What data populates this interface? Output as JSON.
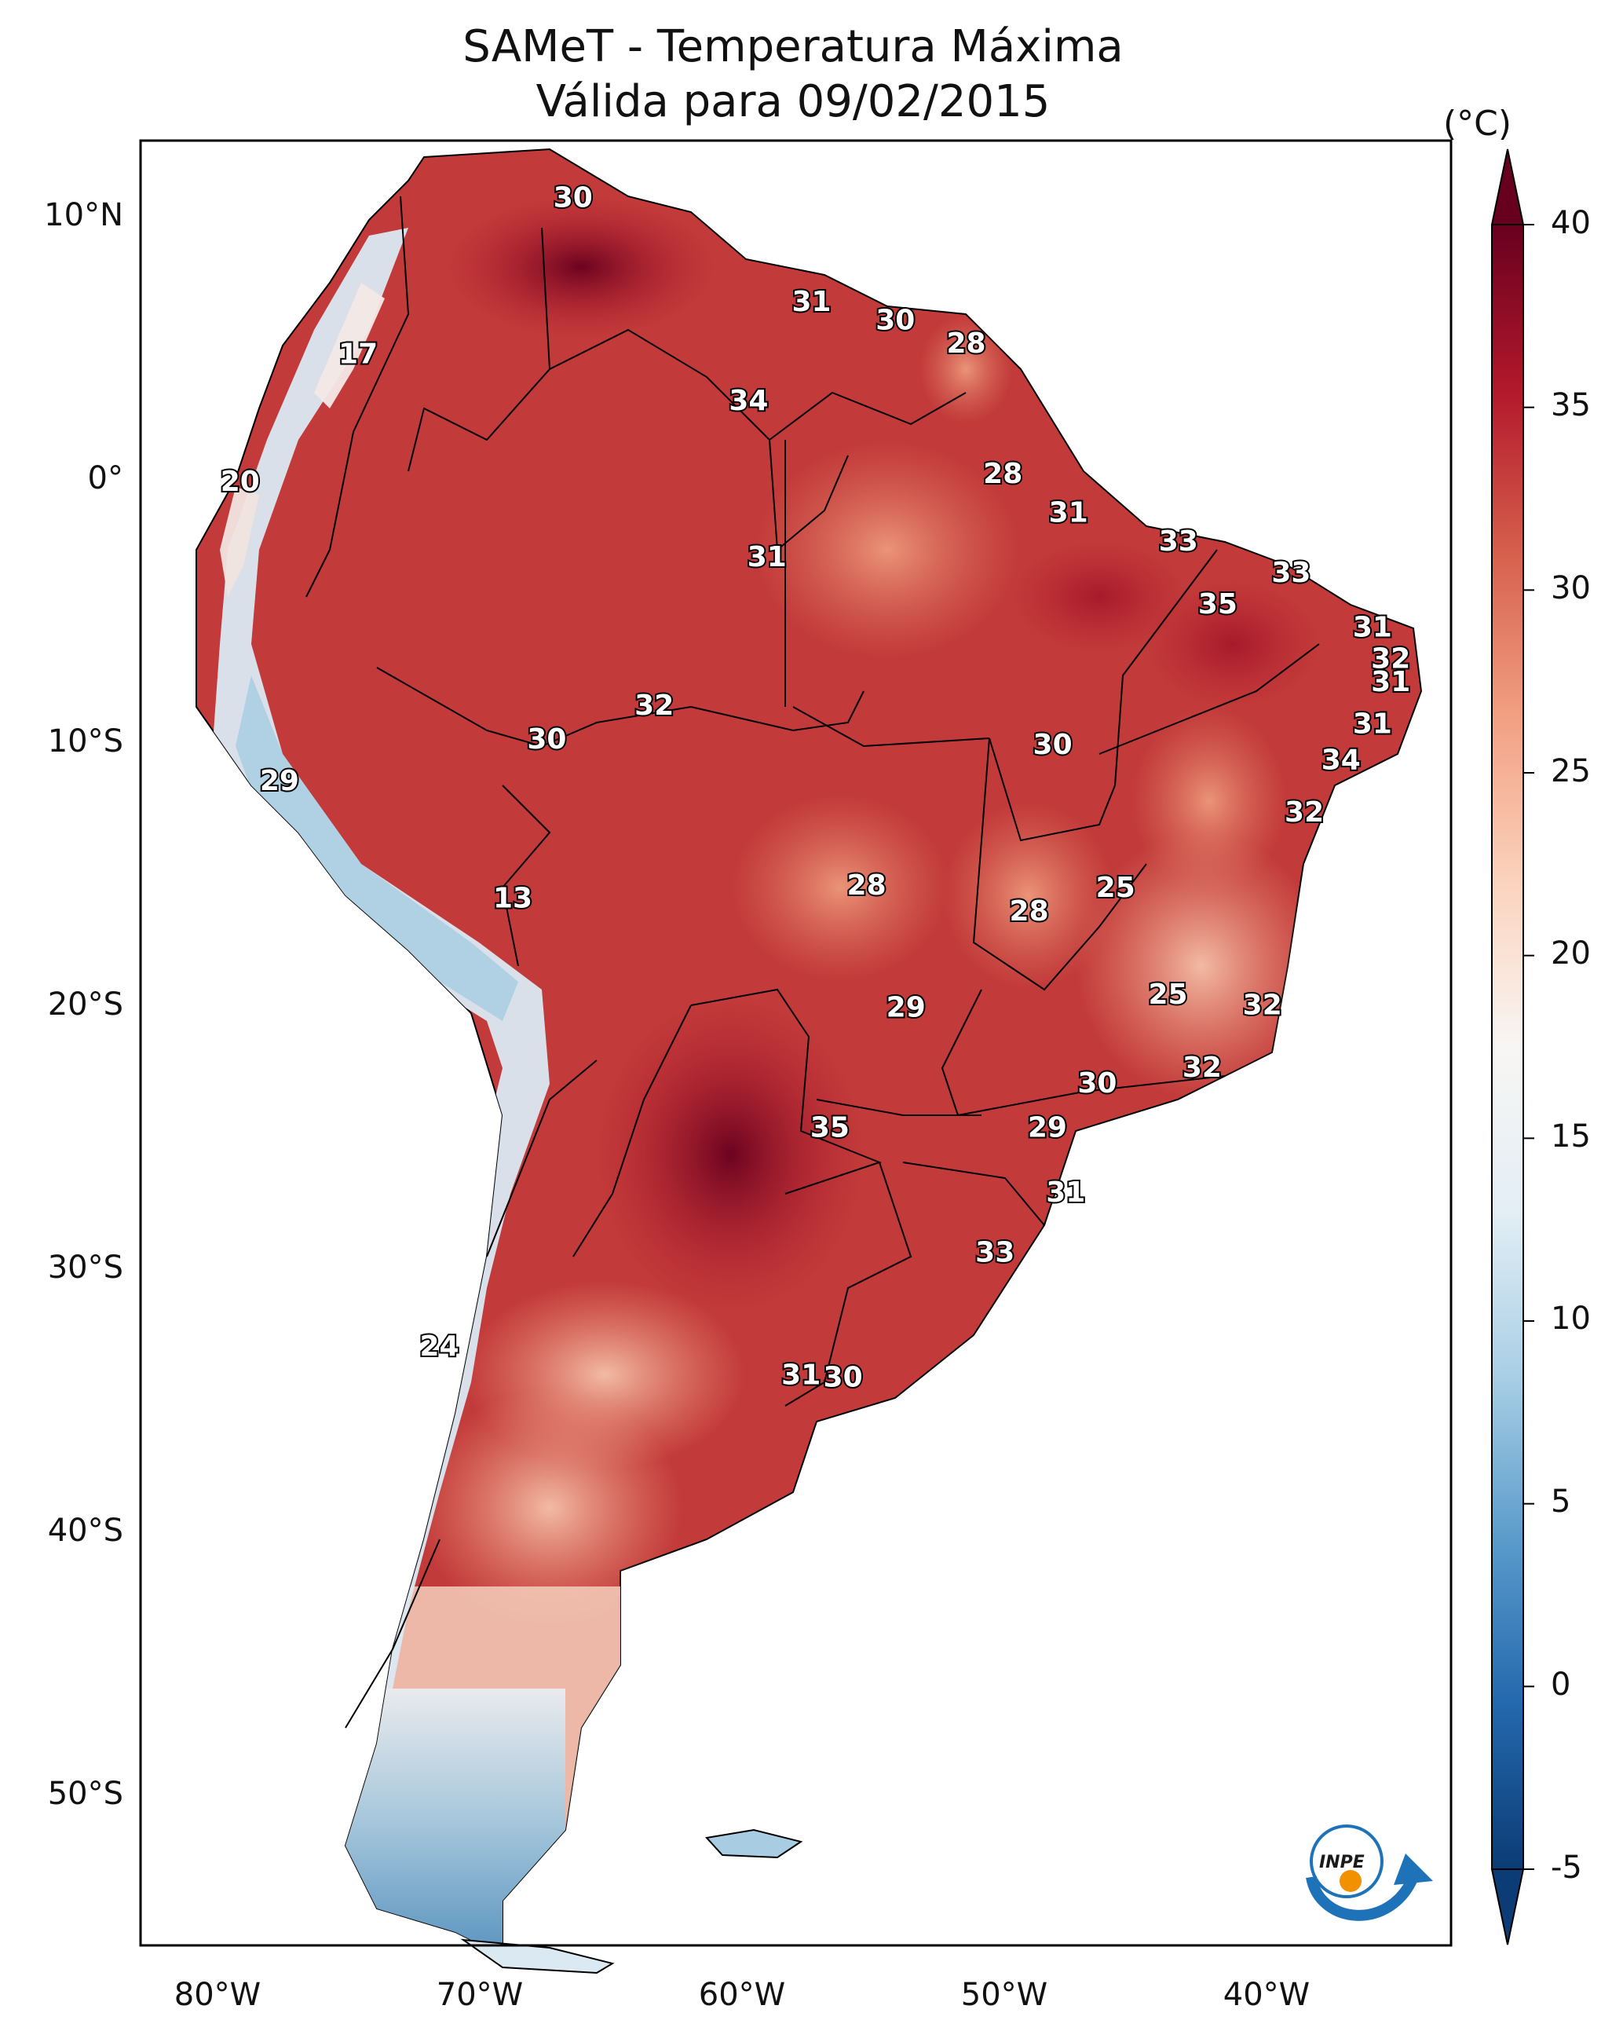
{
  "title": "SAMeT - Temperatura Máxima",
  "subtitle": "Válida para 09/02/2015",
  "colorbar": {
    "unit": "(°C)",
    "ticks": [
      "40",
      "35",
      "30",
      "25",
      "20",
      "15",
      "10",
      "5",
      "0",
      "-5"
    ],
    "range": [
      -5,
      40
    ],
    "colors": [
      "#0b3c75",
      "#2468ad",
      "#5a9bcb",
      "#a9cfe5",
      "#e3eef5",
      "#f8f6f4",
      "#fbd3bd",
      "#f2a083",
      "#d6604d",
      "#b2182b",
      "#67001f"
    ]
  },
  "axes": {
    "lat_labels": [
      "10°N",
      "0°",
      "10°S",
      "20°S",
      "30°S",
      "40°S",
      "50°S"
    ],
    "lon_labels": [
      "80°W",
      "70°W",
      "60°W",
      "50°W",
      "40°W"
    ]
  },
  "map_extent": {
    "lon": [
      -82.8,
      -32.8
    ],
    "lat": [
      -56.5,
      12.8
    ]
  },
  "contour_labels": [
    {
      "text": "30",
      "lon": -66.3,
      "lat": 10.6
    },
    {
      "text": "31",
      "lon": -57.2,
      "lat": 6.6
    },
    {
      "text": "30",
      "lon": -54.0,
      "lat": 5.9
    },
    {
      "text": "28",
      "lon": -51.3,
      "lat": 5.0
    },
    {
      "text": "17",
      "lon": -74.5,
      "lat": 4.6
    },
    {
      "text": "34",
      "lon": -59.6,
      "lat": 2.8
    },
    {
      "text": "28",
      "lon": -49.9,
      "lat": 0.0
    },
    {
      "text": "20",
      "lon": -79.0,
      "lat": -0.3
    },
    {
      "text": "31",
      "lon": -47.4,
      "lat": -1.5
    },
    {
      "text": "33",
      "lon": -43.2,
      "lat": -2.6
    },
    {
      "text": "31",
      "lon": -58.9,
      "lat": -3.2
    },
    {
      "text": "33",
      "lon": -38.9,
      "lat": -3.8
    },
    {
      "text": "35",
      "lon": -41.7,
      "lat": -5.0
    },
    {
      "text": "31",
      "lon": -35.8,
      "lat": -5.9
    },
    {
      "text": "32",
      "lon": -35.1,
      "lat": -7.1
    },
    {
      "text": "31",
      "lon": -35.1,
      "lat": -8.0
    },
    {
      "text": "32",
      "lon": -63.2,
      "lat": -8.9
    },
    {
      "text": "31",
      "lon": -35.8,
      "lat": -9.6
    },
    {
      "text": "30",
      "lon": -67.3,
      "lat": -10.2
    },
    {
      "text": "30",
      "lon": -48.0,
      "lat": -10.4
    },
    {
      "text": "34",
      "lon": -37.0,
      "lat": -11.0
    },
    {
      "text": "29",
      "lon": -77.5,
      "lat": -11.8
    },
    {
      "text": "32",
      "lon": -38.4,
      "lat": -13.0
    },
    {
      "text": "25",
      "lon": -45.6,
      "lat": -15.9
    },
    {
      "text": "28",
      "lon": -55.1,
      "lat": -15.8
    },
    {
      "text": "28",
      "lon": -48.9,
      "lat": -16.8
    },
    {
      "text": "13",
      "lon": -68.6,
      "lat": -16.3
    },
    {
      "text": "25",
      "lon": -43.6,
      "lat": -20.0
    },
    {
      "text": "32",
      "lon": -40.0,
      "lat": -20.4
    },
    {
      "text": "29",
      "lon": -53.6,
      "lat": -20.5
    },
    {
      "text": "32",
      "lon": -42.3,
      "lat": -22.8
    },
    {
      "text": "30",
      "lon": -46.3,
      "lat": -23.4
    },
    {
      "text": "35",
      "lon": -56.5,
      "lat": -25.1
    },
    {
      "text": "29",
      "lon": -48.2,
      "lat": -25.1
    },
    {
      "text": "31",
      "lon": -47.5,
      "lat": -27.6
    },
    {
      "text": "33",
      "lon": -50.2,
      "lat": -29.9
    },
    {
      "text": "24",
      "lon": -71.4,
      "lat": -33.5
    },
    {
      "text": "31",
      "lon": -57.6,
      "lat": -34.6
    },
    {
      "text": "30",
      "lon": -56.0,
      "lat": -34.7
    }
  ],
  "logo": {
    "text": "INPE"
  }
}
